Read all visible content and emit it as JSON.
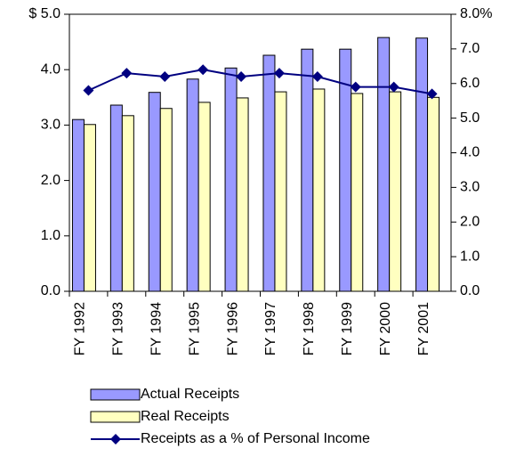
{
  "chart_data": {
    "type": "bar-line",
    "categories": [
      "FY 1992",
      "FY 1993",
      "FY 1994",
      "FY 1995",
      "FY 1996",
      "FY 1997",
      "FY 1998",
      "FY 1999",
      "FY 2000",
      "FY 2001"
    ],
    "series": [
      {
        "name": "Actual Receipts",
        "type": "bar",
        "color": "#9999ff",
        "values": [
          3.1,
          3.36,
          3.59,
          3.83,
          4.03,
          4.26,
          4.37,
          4.37,
          4.58,
          4.57
        ]
      },
      {
        "name": "Real Receipts",
        "type": "bar",
        "color": "#ffffc0",
        "values": [
          3.01,
          3.17,
          3.3,
          3.41,
          3.49,
          3.6,
          3.65,
          3.57,
          3.6,
          3.5
        ]
      },
      {
        "name": "Receipts as a % of Personal Income",
        "type": "line",
        "axis": "y2",
        "color": "#000080",
        "values": [
          5.8,
          6.3,
          6.2,
          6.4,
          6.2,
          6.3,
          6.2,
          5.9,
          5.9,
          5.7
        ]
      }
    ],
    "ylim": [
      0,
      5
    ],
    "yticks": [
      {
        "value": 0,
        "label": "0.0"
      },
      {
        "value": 1,
        "label": "1.0"
      },
      {
        "value": 2,
        "label": "2.0"
      },
      {
        "value": 3,
        "label": "3.0"
      },
      {
        "value": 4,
        "label": "4.0"
      },
      {
        "value": 5,
        "label": "$ 5.0"
      }
    ],
    "y2lim": [
      0,
      8
    ],
    "y2ticks": [
      {
        "value": 0,
        "label": "0.0"
      },
      {
        "value": 1,
        "label": "1.0"
      },
      {
        "value": 2,
        "label": "2.0"
      },
      {
        "value": 3,
        "label": "3.0"
      },
      {
        "value": 4,
        "label": "4.0"
      },
      {
        "value": 5,
        "label": "5.0"
      },
      {
        "value": 6,
        "label": "6.0"
      },
      {
        "value": 7,
        "label": "7.0"
      },
      {
        "value": 8,
        "label": "8.0%"
      }
    ],
    "grid": false
  }
}
